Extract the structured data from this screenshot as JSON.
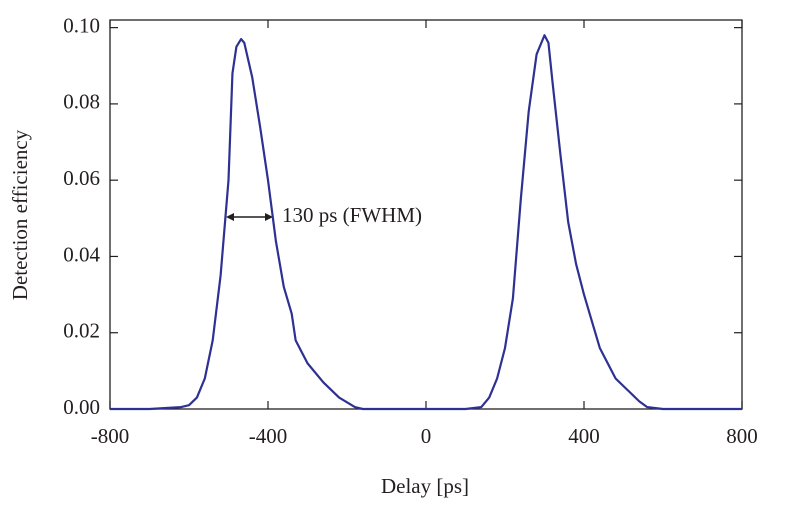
{
  "chart_data": {
    "type": "line",
    "xlabel": "Delay [ps]",
    "ylabel": "Detection efficiency",
    "annotation": "130 ps (FWHM)",
    "xlim": [
      -800,
      800
    ],
    "xticks": [
      -800,
      -400,
      0,
      400,
      800
    ],
    "ylim": [
      0,
      0.102
    ],
    "yticks": [
      {
        "value": 0,
        "label": "0.00"
      },
      {
        "value": 0.02,
        "label": "0.02"
      },
      {
        "value": 0.04,
        "label": "0.04"
      },
      {
        "value": 0.06,
        "label": "0.06"
      },
      {
        "value": 0.08,
        "label": "0.08"
      },
      {
        "value": 0.1,
        "label": "0.10"
      }
    ],
    "grid": false,
    "series": [
      {
        "color": "#2e3192",
        "x": [
          -800,
          -700,
          -620,
          -600,
          -580,
          -560,
          -540,
          -520,
          -500,
          -490,
          -480,
          -468,
          -460,
          -440,
          -420,
          -400,
          -380,
          -360,
          -340,
          -330,
          -300,
          -260,
          -220,
          -180,
          -160,
          -100,
          0,
          100,
          140,
          160,
          180,
          200,
          220,
          240,
          260,
          280,
          300,
          310,
          320,
          340,
          360,
          380,
          400,
          420,
          440,
          460,
          480,
          500,
          520,
          540,
          560,
          600,
          700,
          800
        ],
        "values": [
          0,
          0,
          0.0005,
          0.001,
          0.003,
          0.008,
          0.018,
          0.035,
          0.06,
          0.088,
          0.095,
          0.097,
          0.096,
          0.087,
          0.074,
          0.06,
          0.044,
          0.032,
          0.025,
          0.018,
          0.012,
          0.007,
          0.003,
          0.0005,
          0,
          0,
          0,
          0,
          0.0005,
          0.003,
          0.008,
          0.016,
          0.029,
          0.055,
          0.078,
          0.093,
          0.098,
          0.096,
          0.086,
          0.067,
          0.049,
          0.038,
          0.03,
          0.023,
          0.016,
          0.012,
          0.008,
          0.006,
          0.004,
          0.002,
          0.0005,
          0,
          0,
          0
        ]
      }
    ]
  }
}
